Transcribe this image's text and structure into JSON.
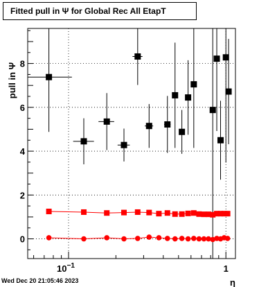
{
  "chart_data": {
    "type": "scatter",
    "title": "Fitted pull in  Ψ  for Global Rec All EtapT",
    "ylabel": "pull in  Ψ",
    "xlabel": "η",
    "x_scale": "log",
    "xlim": [
      0.055,
      1.15
    ],
    "ylim": [
      -0.9,
      9.6
    ],
    "grid": true,
    "y_ticks": [
      0,
      2,
      4,
      6,
      8
    ],
    "x_tick_labels": [
      {
        "value": 0.1,
        "base": "10",
        "exp": "−1"
      },
      {
        "value": 1,
        "label": "1"
      }
    ],
    "series": [
      {
        "marker": "square",
        "color": "#000000",
        "connect": false,
        "points": [
          {
            "x": 0.075,
            "y": 7.38,
            "xerr": [
              0.055,
              0.105
            ],
            "yerr": [
              2.5,
              2.5
            ]
          },
          {
            "x": 0.125,
            "y": 4.45,
            "xerr": [
              0.107,
              0.145
            ],
            "yerr": [
              1.05,
              1.05
            ]
          },
          {
            "x": 0.175,
            "y": 5.35,
            "xerr": [
              0.155,
              0.195
            ],
            "yerr": [
              1.3,
              1.3
            ]
          },
          {
            "x": 0.225,
            "y": 4.28,
            "xerr": [
              0.205,
              0.245
            ],
            "yerr": [
              0.75,
              0.75
            ]
          },
          {
            "x": 0.275,
            "y": 8.32,
            "xerr": [
              0.255,
              0.295
            ],
            "yerr": [
              1.3,
              1.3
            ]
          },
          {
            "x": 0.325,
            "y": 5.15,
            "xerr": [
              0.305,
              0.345
            ],
            "yerr": [
              1.0,
              1.0
            ]
          },
          {
            "x": 0.425,
            "y": 5.22,
            "xerr": [
              0.405,
              0.445
            ],
            "yerr": [
              1.3,
              1.3
            ]
          },
          {
            "x": 0.475,
            "y": 6.55,
            "xerr": [
              0.455,
              0.495
            ],
            "yerr": [
              2.4,
              2.4
            ]
          },
          {
            "x": 0.525,
            "y": 4.88,
            "xerr": [
              0.505,
              0.545
            ],
            "yerr": [
              1.0,
              1.0
            ]
          },
          {
            "x": 0.575,
            "y": 6.45,
            "xerr": [
              0.555,
              0.595
            ],
            "yerr": [
              1.7,
              1.7
            ]
          },
          {
            "x": 0.625,
            "y": 7.05,
            "xerr": [
              0.605,
              0.645
            ],
            "yerr": [
              2.9,
              2.9
            ]
          },
          {
            "x": 0.825,
            "y": 5.88,
            "xerr": [
              0.805,
              0.845
            ],
            "yerr": [
              6.8,
              6.8
            ]
          },
          {
            "x": 0.875,
            "y": 8.22,
            "xerr": [
              0.855,
              0.895
            ],
            "yerr": [
              3.3,
              3.3
            ]
          },
          {
            "x": 0.925,
            "y": 4.5,
            "xerr": [
              0.905,
              0.945
            ],
            "yerr": [
              1.8,
              1.8
            ]
          },
          {
            "x": 1.0,
            "y": 8.28,
            "xerr": [
              0.98,
              1.02
            ],
            "yerr": [
              4.8,
              4.8
            ]
          },
          {
            "x": 1.04,
            "y": 6.72,
            "xerr": [
              1.02,
              1.06
            ],
            "yerr": [
              2.4,
              2.4
            ]
          }
        ]
      },
      {
        "marker": "square",
        "color": "#ff0000",
        "connect": true,
        "points": [
          {
            "x": 0.075,
            "y": 1.25
          },
          {
            "x": 0.125,
            "y": 1.22
          },
          {
            "x": 0.175,
            "y": 1.18
          },
          {
            "x": 0.225,
            "y": 1.2
          },
          {
            "x": 0.275,
            "y": 1.22
          },
          {
            "x": 0.325,
            "y": 1.2
          },
          {
            "x": 0.375,
            "y": 1.15
          },
          {
            "x": 0.425,
            "y": 1.18
          },
          {
            "x": 0.475,
            "y": 1.13
          },
          {
            "x": 0.525,
            "y": 1.13
          },
          {
            "x": 0.575,
            "y": 1.16
          },
          {
            "x": 0.625,
            "y": 1.18
          },
          {
            "x": 0.675,
            "y": 1.13
          },
          {
            "x": 0.725,
            "y": 1.12
          },
          {
            "x": 0.775,
            "y": 1.12
          },
          {
            "x": 0.825,
            "y": 1.1
          },
          {
            "x": 0.875,
            "y": 1.15
          },
          {
            "x": 0.925,
            "y": 1.15
          },
          {
            "x": 0.975,
            "y": 1.15
          },
          {
            "x": 1.025,
            "y": 1.15
          }
        ]
      },
      {
        "marker": "circle",
        "color": "#ff0000",
        "connect": true,
        "points": [
          {
            "x": 0.075,
            "y": 0.05
          },
          {
            "x": 0.125,
            "y": 0.0
          },
          {
            "x": 0.175,
            "y": 0.05
          },
          {
            "x": 0.225,
            "y": 0.0
          },
          {
            "x": 0.275,
            "y": 0.02
          },
          {
            "x": 0.325,
            "y": 0.08
          },
          {
            "x": 0.375,
            "y": 0.05
          },
          {
            "x": 0.425,
            "y": 0.02
          },
          {
            "x": 0.475,
            "y": 0.0
          },
          {
            "x": 0.525,
            "y": 0.02
          },
          {
            "x": 0.575,
            "y": 0.0
          },
          {
            "x": 0.625,
            "y": 0.02
          },
          {
            "x": 0.675,
            "y": 0.0
          },
          {
            "x": 0.725,
            "y": 0.0
          },
          {
            "x": 0.775,
            "y": 0.0
          },
          {
            "x": 0.825,
            "y": -0.03
          },
          {
            "x": 0.875,
            "y": 0.02
          },
          {
            "x": 0.925,
            "y": 0.0
          },
          {
            "x": 0.975,
            "y": 0.05
          },
          {
            "x": 1.025,
            "y": 0.02
          }
        ]
      }
    ]
  },
  "footer": {
    "timestamp": "Wed Dec 20 21:05:46 2023"
  }
}
